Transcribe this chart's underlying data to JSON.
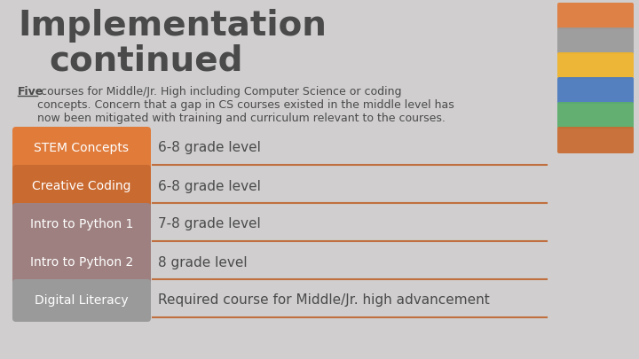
{
  "title_line1": "Implementation",
  "title_line2": "continued",
  "title_color": "#4a4a4a",
  "background_color": "#d0cece",
  "rows": [
    {
      "label": "STEM Concepts",
      "desc": "6-8 grade level",
      "label_color": "#e07b3a"
    },
    {
      "label": "Creative Coding",
      "desc": "6-8 grade level",
      "label_color": "#c96a30"
    },
    {
      "label": "Intro to Python 1",
      "desc": "7-8 grade level",
      "label_color": "#9e8080"
    },
    {
      "label": "Intro to Python 2",
      "desc": "8 grade level",
      "label_color": "#9e8080"
    },
    {
      "label": "Digital Literacy",
      "desc": "Required course for Middle/Jr. high advancement",
      "label_color": "#9a9a9a"
    }
  ],
  "sidebar_items": [
    {
      "color": "#e07b3a"
    },
    {
      "color": "#9a9a9a"
    },
    {
      "color": "#f0b429"
    },
    {
      "color": "#4a7abf"
    },
    {
      "color": "#5aad6a"
    },
    {
      "color": "#c96a30"
    }
  ],
  "separator_color": "#c07040",
  "label_text_color": "#ffffff",
  "desc_text_color": "#4a4a4a"
}
